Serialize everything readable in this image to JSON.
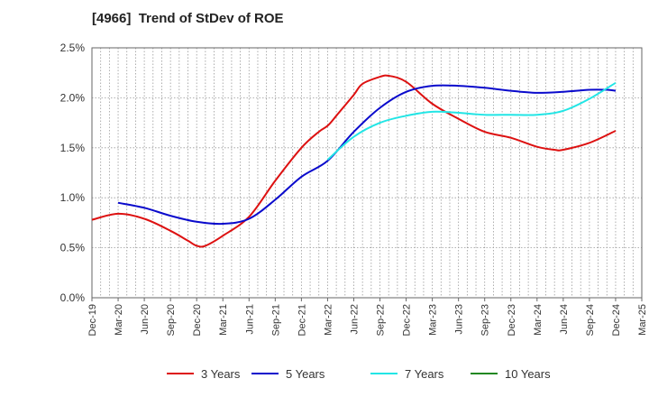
{
  "chart_data": {
    "type": "line",
    "title": "[4966]  Trend of StDev of ROE",
    "xlabel": "",
    "ylabel": "",
    "x_ticks": [
      "Dec-19",
      "Mar-20",
      "Jun-20",
      "Sep-20",
      "Dec-20",
      "Mar-21",
      "Jun-21",
      "Sep-21",
      "Dec-21",
      "Mar-22",
      "Jun-22",
      "Sep-22",
      "Dec-22",
      "Mar-23",
      "Jun-23",
      "Sep-23",
      "Dec-23",
      "Mar-24",
      "Jun-24",
      "Sep-24",
      "Dec-24",
      "Mar-25"
    ],
    "y_ticks": [
      "0.0%",
      "0.5%",
      "1.0%",
      "1.5%",
      "2.0%",
      "2.5%"
    ],
    "ylim": [
      0,
      2.5
    ],
    "y_unit": "%",
    "grid": true,
    "legend_position": "bottom",
    "series": [
      {
        "name": "3 Years",
        "color": "#dd1111",
        "x": [
          "Dec-19",
          "Mar-20",
          "Jun-20",
          "Sep-20",
          "Nov-20",
          "Dec-20",
          "Jan-21",
          "Mar-21",
          "Jun-21",
          "Sep-21",
          "Dec-21",
          "Feb-22",
          "Mar-22",
          "Apr-22",
          "Jun-22",
          "Jul-22",
          "Sep-22",
          "Oct-22",
          "Dec-22",
          "Mar-23",
          "Jun-23",
          "Sep-23",
          "Dec-23",
          "Mar-24",
          "May-24",
          "Jun-24",
          "Sep-24",
          "Dec-24"
        ],
        "values": [
          0.78,
          0.84,
          0.79,
          0.67,
          0.57,
          0.52,
          0.52,
          0.62,
          0.81,
          1.17,
          1.5,
          1.66,
          1.72,
          1.82,
          2.03,
          2.14,
          2.21,
          2.22,
          2.16,
          1.94,
          1.79,
          1.66,
          1.6,
          1.51,
          1.48,
          1.48,
          1.55,
          1.67
        ]
      },
      {
        "name": "5 Years",
        "color": "#0a0acc",
        "x": [
          "Mar-20",
          "Jun-20",
          "Sep-20",
          "Dec-20",
          "Mar-21",
          "Jun-21",
          "Sep-21",
          "Dec-21",
          "Mar-22",
          "Jun-22",
          "Sep-22",
          "Dec-22",
          "Mar-23",
          "Jun-23",
          "Sep-23",
          "Dec-23",
          "Mar-24",
          "Jun-24",
          "Sep-24",
          "Nov-24",
          "Dec-24"
        ],
        "values": [
          0.95,
          0.9,
          0.82,
          0.76,
          0.74,
          0.79,
          0.98,
          1.21,
          1.37,
          1.66,
          1.9,
          2.06,
          2.12,
          2.12,
          2.1,
          2.07,
          2.05,
          2.06,
          2.08,
          2.08,
          2.07
        ]
      },
      {
        "name": "7 Years",
        "color": "#22e5e5",
        "x": [
          "Mar-22",
          "Jun-22",
          "Sep-22",
          "Dec-22",
          "Mar-23",
          "Jun-23",
          "Sep-23",
          "Dec-23",
          "Mar-24",
          "Jun-24",
          "Sep-24",
          "Dec-24"
        ],
        "values": [
          1.38,
          1.61,
          1.75,
          1.82,
          1.86,
          1.85,
          1.83,
          1.83,
          1.83,
          1.87,
          1.99,
          2.15
        ]
      },
      {
        "name": "10 Years",
        "color": "#228822",
        "x": [],
        "values": []
      }
    ]
  }
}
